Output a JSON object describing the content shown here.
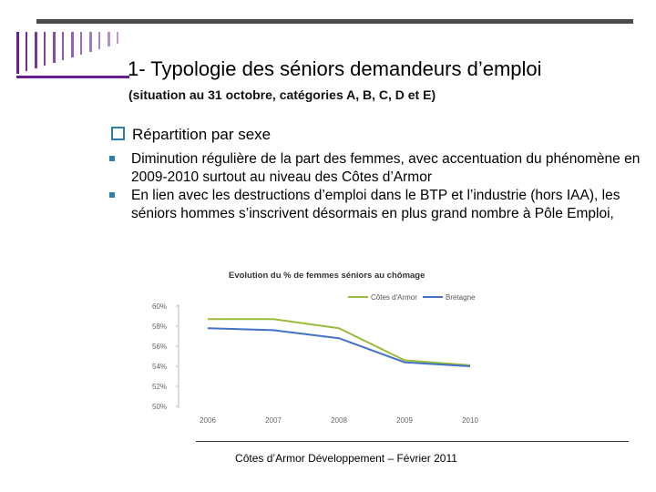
{
  "slide": {
    "title": "1- Typologie des séniors demandeurs d’emploi",
    "subtitle": "(situation au 31 octobre, catégories A, B, C, D et E)",
    "section_heading": "Répartition par sexe",
    "bullets": [
      {
        "text": "Diminution régulière de la part des femmes, avec accentuation du phénomène en 2009-2010 surtout au niveau des Côtes d’Armor"
      },
      {
        "text": "En lien avec les destructions d’emploi dans le BTP et l’industrie (hors IAA), les séniors hommes s’inscrivent désormais en plus grand nombre à Pôle Emploi,"
      }
    ],
    "footer": "Côtes d’Armor Développement – Février 2011"
  },
  "colors": {
    "accent": "#2b7fa8",
    "rule": "#4a4a4a",
    "deco": "#6a1f8f",
    "cotes": "#9bbb3b",
    "bretagne": "#4472c4"
  },
  "chart_data": {
    "type": "line",
    "title": "Evolution du % de femmes séniors au chômage",
    "categories": [
      "2006",
      "2007",
      "2008",
      "2009",
      "2010"
    ],
    "x": [
      2006,
      2007,
      2008,
      2009,
      2010
    ],
    "ylim": [
      50,
      60
    ],
    "yticks": [
      "60%",
      "58%",
      "56%",
      "54%",
      "52%",
      "50%"
    ],
    "series": [
      {
        "name": "Côtes d'Armor",
        "color": "#9bbb3b",
        "values": [
          58.7,
          58.7,
          57.8,
          54.6,
          54.1
        ]
      },
      {
        "name": "Bretagne",
        "color": "#4472c4",
        "values": [
          57.8,
          57.6,
          56.8,
          54.4,
          54.0
        ]
      }
    ],
    "legend": "top-right",
    "grid": false
  }
}
